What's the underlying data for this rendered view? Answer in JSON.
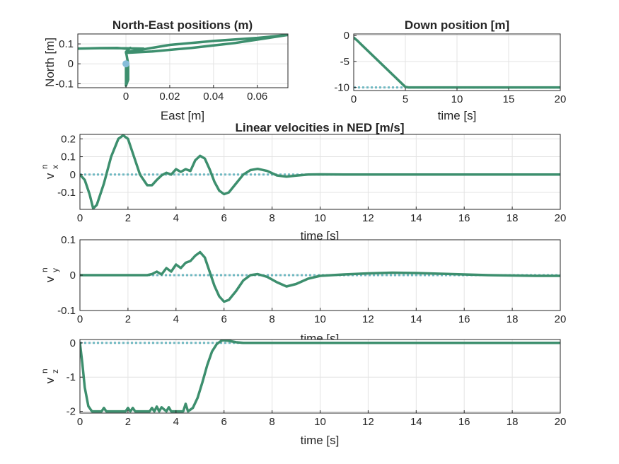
{
  "colors": {
    "series": "#3d8f6e",
    "reference": "#70b9c2",
    "marker": "#86bdd9",
    "grid": "#e3e3e3",
    "axis": "#262626"
  },
  "panels": {
    "ne": {
      "title": "North-East positions (m)",
      "xlabel": "East [m]",
      "ylabel": "North [m]",
      "xticks": [
        "0",
        "0.02",
        "0.04",
        "0.06"
      ],
      "yticks": [
        "0.1",
        "0",
        "-0.1"
      ]
    },
    "down": {
      "title": "Down position [m]",
      "xlabel": "time [s]",
      "ylabel": "",
      "xticks": [
        "0",
        "5",
        "10",
        "15",
        "20"
      ],
      "yticks": [
        "0",
        "-5",
        "-10"
      ]
    },
    "vx": {
      "title": "Linear velocities in NED [m/s]",
      "xlabel": "time [s]",
      "ylabel_base": "v",
      "ylabel_sup": "n",
      "ylabel_sub": "x",
      "xticks": [
        "0",
        "2",
        "4",
        "6",
        "8",
        "10",
        "12",
        "14",
        "16",
        "18",
        "20"
      ],
      "yticks": [
        "0.2",
        "0.1",
        "0",
        "-0.1"
      ]
    },
    "vy": {
      "title": "",
      "xlabel": "time [s]",
      "ylabel_base": "v",
      "ylabel_sup": "n",
      "ylabel_sub": "y",
      "xticks": [
        "0",
        "2",
        "4",
        "6",
        "8",
        "10",
        "12",
        "14",
        "16",
        "18",
        "20"
      ],
      "yticks": [
        "0.1",
        "0",
        "-0.1"
      ]
    },
    "vz": {
      "title": "",
      "xlabel": "time [s]",
      "ylabel_base": "v",
      "ylabel_sup": "n",
      "ylabel_sub": "z",
      "xticks": [
        "0",
        "2",
        "4",
        "6",
        "8",
        "10",
        "12",
        "14",
        "16",
        "18",
        "20"
      ],
      "yticks": [
        "0",
        "-1",
        "-2"
      ]
    }
  },
  "chart_data": [
    {
      "type": "line",
      "id": "ne",
      "title": "North-East positions (m)",
      "xlabel": "East [m]",
      "ylabel": "North [m]",
      "xlim": [
        -0.022,
        0.074
      ],
      "ylim": [
        -0.12,
        0.15
      ],
      "grid": true,
      "series": [
        {
          "role": "trajectory",
          "x": [
            0,
            0.0,
            0.0,
            0.001,
            0.001,
            0.0,
            0.002,
            0.001,
            -0.004,
            -0.01,
            -0.018,
            -0.022,
            -0.012,
            0.0,
            0.008,
            0.004,
            0.0,
            0.012,
            0.03,
            0.05,
            0.074,
            0.06,
            0.04,
            0.02,
            0.0,
            0.001
          ],
          "y": [
            0,
            -0.05,
            -0.11,
            -0.08,
            0.0,
            0.06,
            0.08,
            0.075,
            0.08,
            0.079,
            0.077,
            0.076,
            0.079,
            0.078,
            0.076,
            0.065,
            0.055,
            0.062,
            0.08,
            0.105,
            0.145,
            0.13,
            0.115,
            0.095,
            0.058,
            0.06
          ]
        },
        {
          "role": "start",
          "x": [
            0
          ],
          "y": [
            0
          ]
        }
      ]
    },
    {
      "type": "line",
      "id": "down",
      "title": "Down position [m]",
      "xlabel": "time [s]",
      "ylabel": "",
      "xlim": [
        0,
        20
      ],
      "ylim": [
        -10.6,
        0.3
      ],
      "grid": true,
      "series": [
        {
          "role": "actual",
          "x": [
            0,
            0.3,
            5.0,
            5.3,
            6,
            20
          ],
          "y": [
            -0.4,
            -0.9,
            -9.9,
            -10.0,
            -10.0,
            -10.0
          ]
        },
        {
          "role": "reference",
          "x": [
            0,
            20
          ],
          "y": [
            -10,
            -10
          ]
        }
      ]
    },
    {
      "type": "line",
      "id": "vx",
      "title": "Linear velocities in NED [m/s]",
      "xlabel": "time [s]",
      "ylabel": "v_x^n",
      "xlim": [
        0,
        20
      ],
      "ylim": [
        -0.195,
        0.225
      ],
      "grid": true,
      "series": [
        {
          "role": "actual",
          "x": [
            0,
            0.2,
            0.4,
            0.55,
            0.7,
            1.0,
            1.3,
            1.6,
            1.8,
            2.0,
            2.2,
            2.5,
            2.8,
            3.0,
            3.2,
            3.4,
            3.6,
            3.8,
            4.0,
            4.2,
            4.4,
            4.6,
            4.8,
            5.0,
            5.2,
            5.4,
            5.6,
            5.8,
            6.0,
            6.2,
            6.5,
            6.8,
            7.1,
            7.4,
            7.8,
            8.2,
            8.6,
            9.0,
            9.5,
            10,
            11,
            12,
            14,
            16,
            18,
            20
          ],
          "y": [
            0.0,
            -0.03,
            -0.11,
            -0.19,
            -0.17,
            -0.05,
            0.1,
            0.2,
            0.22,
            0.2,
            0.12,
            0.0,
            -0.06,
            -0.06,
            -0.03,
            -0.005,
            0.01,
            0.0,
            0.03,
            0.015,
            0.03,
            0.02,
            0.08,
            0.105,
            0.09,
            0.03,
            -0.04,
            -0.09,
            -0.11,
            -0.1,
            -0.05,
            0.0,
            0.025,
            0.032,
            0.02,
            -0.005,
            -0.012,
            -0.006,
            0.0,
            0.001,
            0.0,
            0.0,
            0.0,
            0.0,
            0.0,
            0.0
          ]
        },
        {
          "role": "reference",
          "x": [
            0,
            20
          ],
          "y": [
            0,
            0
          ]
        }
      ]
    },
    {
      "type": "line",
      "id": "vy",
      "title": "",
      "xlabel": "time [s]",
      "ylabel": "v_y^n",
      "xlim": [
        0,
        20
      ],
      "ylim": [
        -0.1,
        0.1
      ],
      "grid": true,
      "series": [
        {
          "role": "actual",
          "x": [
            0,
            1,
            2,
            2.8,
            3.0,
            3.2,
            3.4,
            3.6,
            3.8,
            4.0,
            4.2,
            4.4,
            4.6,
            4.8,
            5.0,
            5.2,
            5.4,
            5.6,
            5.8,
            6.0,
            6.2,
            6.5,
            6.8,
            7.1,
            7.4,
            7.8,
            8.2,
            8.6,
            9.0,
            9.5,
            10,
            11,
            12,
            13,
            14,
            15,
            16,
            17,
            18,
            19,
            20
          ],
          "y": [
            0.0,
            0.0,
            0.0,
            0.0,
            0.003,
            0.01,
            0.002,
            0.02,
            0.01,
            0.03,
            0.02,
            0.035,
            0.04,
            0.055,
            0.065,
            0.05,
            0.01,
            -0.03,
            -0.06,
            -0.075,
            -0.07,
            -0.045,
            -0.015,
            0.0,
            0.003,
            -0.005,
            -0.02,
            -0.032,
            -0.025,
            -0.01,
            -0.002,
            0.002,
            0.005,
            0.007,
            0.006,
            0.004,
            0.002,
            0.0,
            -0.001,
            -0.002,
            -0.002
          ]
        },
        {
          "role": "reference",
          "x": [
            0,
            20
          ],
          "y": [
            0,
            0
          ]
        }
      ]
    },
    {
      "type": "line",
      "id": "vz",
      "title": "",
      "xlabel": "time [s]",
      "ylabel": "v_z^n",
      "xlim": [
        0,
        20
      ],
      "ylim": [
        -2.05,
        0.1
      ],
      "grid": true,
      "series": [
        {
          "role": "actual",
          "x": [
            0,
            0.1,
            0.2,
            0.35,
            0.5,
            0.9,
            1.0,
            1.1,
            1.4,
            1.9,
            2.0,
            2.1,
            2.2,
            2.3,
            2.9,
            3.0,
            3.1,
            3.2,
            3.3,
            3.4,
            3.6,
            3.7,
            3.8,
            3.95,
            4.3,
            4.4,
            4.5,
            4.7,
            4.9,
            5.1,
            5.3,
            5.5,
            5.7,
            5.9,
            6.0,
            6.2,
            6.5,
            6.8,
            7.2,
            8,
            10,
            12,
            14,
            16,
            18,
            20
          ],
          "y": [
            0.0,
            -0.6,
            -1.3,
            -1.85,
            -2.0,
            -2.0,
            -1.9,
            -2.0,
            -2.0,
            -2.0,
            -1.9,
            -2.0,
            -1.9,
            -2.0,
            -2.0,
            -1.9,
            -2.0,
            -1.86,
            -2.0,
            -1.88,
            -2.0,
            -1.88,
            -2.0,
            -2.0,
            -2.0,
            -1.78,
            -2.0,
            -1.9,
            -1.6,
            -1.15,
            -0.65,
            -0.25,
            -0.03,
            0.07,
            0.08,
            0.06,
            0.02,
            0.0,
            0.0,
            0.0,
            0.0,
            0.0,
            0.0,
            0.0,
            0.0,
            0.0
          ]
        },
        {
          "role": "reference",
          "x": [
            0,
            20
          ],
          "y": [
            0,
            0
          ]
        }
      ]
    }
  ]
}
